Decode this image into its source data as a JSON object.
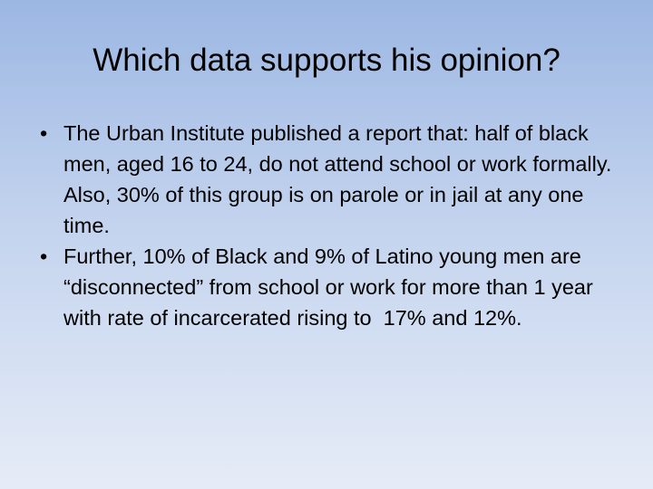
{
  "slide": {
    "title": "Which data supports his opinion?",
    "bullets": [
      "The Urban Institute published a report that: half of black men, aged 16 to 24, do not attend school or work formally. Also, 30% of this group is on parole or in jail at any one time.",
      "Further, 10% of Black and 9% of Latino young men are “disconnected” from school or work for more than 1 year with rate of incarcerated rising to  17% and 12%."
    ]
  }
}
